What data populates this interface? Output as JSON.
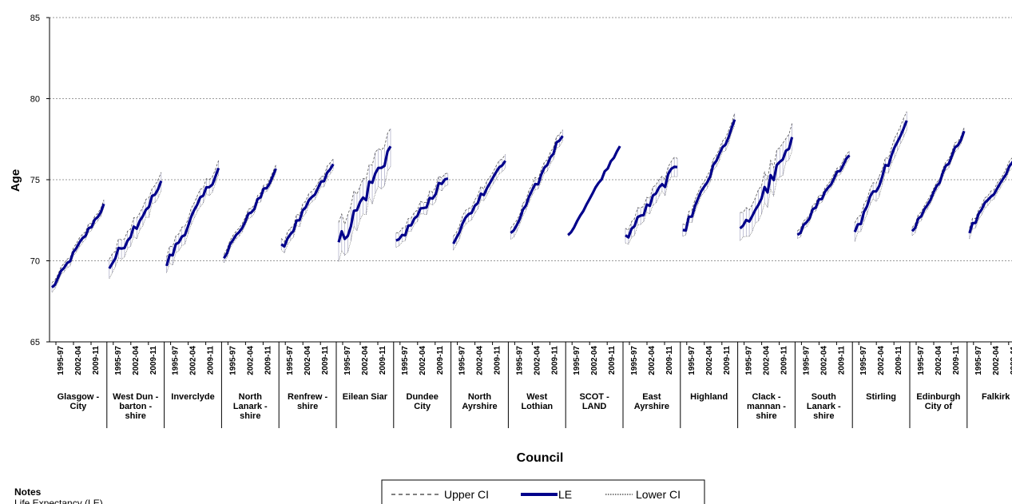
{
  "chart_data": {
    "type": "line",
    "ylabel": "Age",
    "xlabel": "Council",
    "ylim": [
      65,
      85
    ],
    "yticks": [
      "65",
      "70",
      "75",
      "80",
      "85"
    ],
    "grid": true,
    "period_ticks": [
      "1995-97",
      "2002-04",
      "2009-11"
    ],
    "groups": [
      {
        "name": [
          "Glasgow -",
          "City"
        ],
        "start": 68.3,
        "end": 73.4,
        "ci": 0.25
      },
      {
        "name": [
          "West Dun -",
          "barton -",
          "shire"
        ],
        "start": 69.6,
        "end": 74.7,
        "ci": 0.55
      },
      {
        "name": [
          "Inverclyde"
        ],
        "start": 69.8,
        "end": 75.7,
        "ci": 0.5
      },
      {
        "name": [
          "North",
          "Lanark -",
          "shire"
        ],
        "start": 70.3,
        "end": 75.5,
        "ci": 0.25
      },
      {
        "name": [
          "Renfrew -",
          "shire"
        ],
        "start": 70.8,
        "end": 75.9,
        "ci": 0.35
      },
      {
        "name": [
          "Eilean Siar"
        ],
        "start": 71.0,
        "end": 77.0,
        "ci": 1.1
      },
      {
        "name": [
          "Dundee",
          "City"
        ],
        "start": 71.0,
        "end": 75.3,
        "ci": 0.4
      },
      {
        "name": [
          "North",
          "Ayrshire"
        ],
        "start": 71.3,
        "end": 76.4,
        "ci": 0.4
      },
      {
        "name": [
          "West",
          "Lothian"
        ],
        "start": 71.5,
        "end": 77.9,
        "ci": 0.35
      },
      {
        "name": [
          "SCOT -",
          "LAND"
        ],
        "start": 71.5,
        "end": 77.1,
        "ci": 0.05
      },
      {
        "name": [
          "East",
          "Ayrshire"
        ],
        "start": 71.4,
        "end": 75.9,
        "ci": 0.5
      },
      {
        "name": [
          "Highland"
        ],
        "start": 71.7,
        "end": 78.5,
        "ci": 0.35
      },
      {
        "name": [
          "Clack -",
          "mannan -",
          "shire"
        ],
        "start": 71.6,
        "end": 77.2,
        "ci": 0.85
      },
      {
        "name": [
          "South",
          "Lanark -",
          "shire"
        ],
        "start": 71.6,
        "end": 76.6,
        "ci": 0.25
      },
      {
        "name": [
          "Stirling"
        ],
        "start": 71.8,
        "end": 78.4,
        "ci": 0.55
      },
      {
        "name": [
          "Edinburgh",
          "City of"
        ],
        "start": 71.7,
        "end": 77.9,
        "ci": 0.25
      },
      {
        "name": [
          "Falkirk"
        ],
        "start": 71.9,
        "end": 77.0,
        "ci": 0.3
      }
    ],
    "legend": [
      {
        "label": "Upper CI",
        "style": "dashed"
      },
      {
        "label": "LE",
        "style": "thick"
      },
      {
        "label": "Lower CI",
        "style": "dotted"
      }
    ],
    "line_color": "#00008b",
    "ci_color": "#555555"
  },
  "notes": {
    "title": "Notes",
    "text": "Life Expectancy (LE)"
  }
}
